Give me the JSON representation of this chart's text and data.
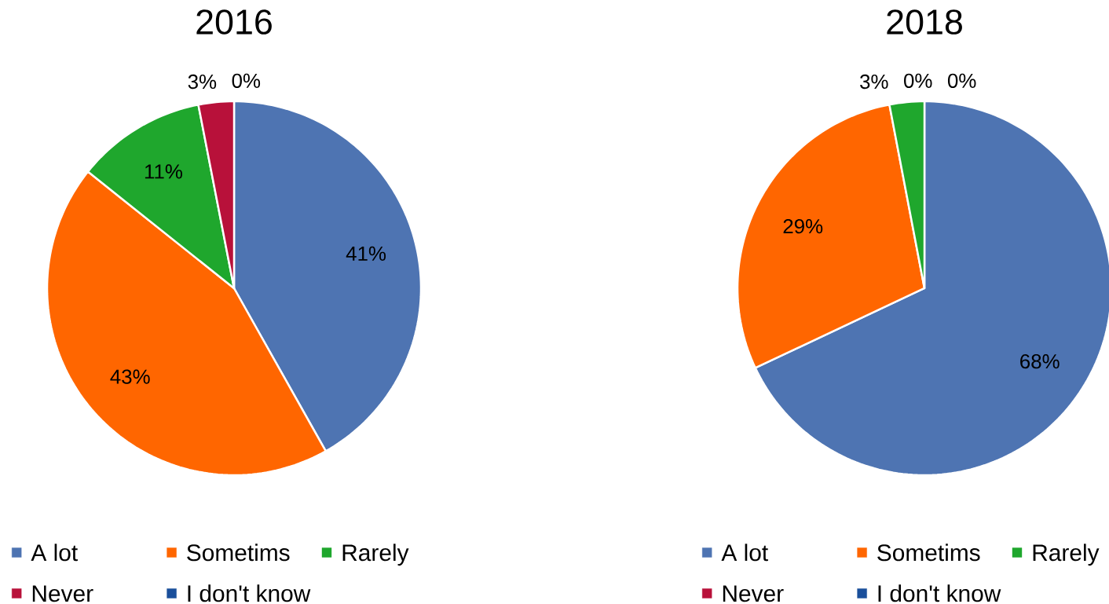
{
  "chart_data": [
    {
      "type": "pie",
      "title": "2016",
      "categories": [
        "A lot",
        "Sometims",
        "Rarely",
        "Never",
        "I don't know"
      ],
      "values": [
        41,
        43,
        11,
        3,
        0
      ],
      "colors": [
        "#4E74B2",
        "#FF6600",
        "#1FA72D",
        "#B8113A",
        "#1A4F9B"
      ],
      "value_labels": [
        "41%",
        "43%",
        "11%",
        "3%",
        "0%"
      ],
      "legend": "bottom"
    },
    {
      "type": "pie",
      "title": "2018",
      "categories": [
        "A lot",
        "Sometims",
        "Rarely",
        "Never",
        "I don't know"
      ],
      "values": [
        68,
        29,
        3,
        0,
        0
      ],
      "colors": [
        "#4E74B2",
        "#FF6600",
        "#1FA72D",
        "#B8113A",
        "#1A4F9B"
      ],
      "value_labels": [
        "68%",
        "29%",
        "3%",
        "0%",
        "0%"
      ],
      "legend": "bottom"
    }
  ]
}
